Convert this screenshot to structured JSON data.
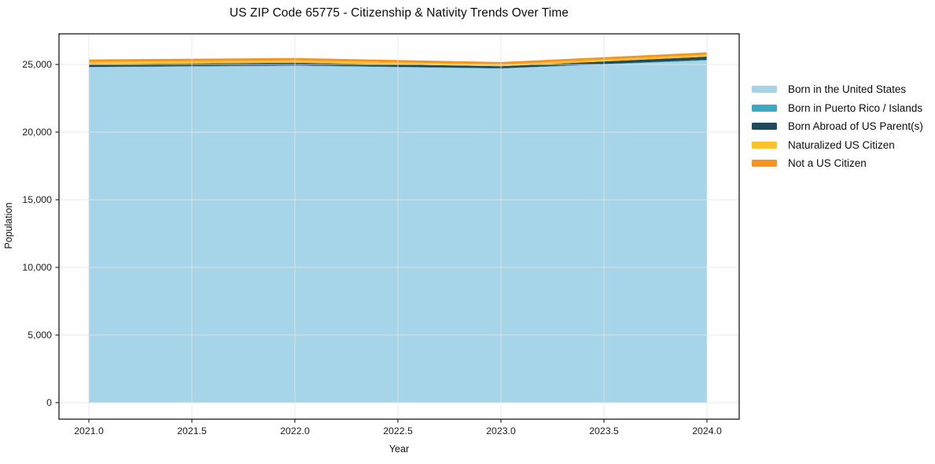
{
  "chart_data": {
    "type": "area",
    "stacked": true,
    "title": "US ZIP Code 65775 - Citizenship & Nativity Trends Over Time",
    "xlabel": "Year",
    "ylabel": "Population",
    "x": [
      2021,
      2022,
      2023,
      2024
    ],
    "series": [
      {
        "name": "Born in the United States",
        "color": "#a6d4e8",
        "values": [
          24800,
          24900,
          24700,
          25300
        ]
      },
      {
        "name": "Born in Puerto Rico / Islands",
        "color": "#3da8c2",
        "values": [
          20,
          30,
          20,
          50
        ]
      },
      {
        "name": "Born Abroad of US Parent(s)",
        "color": "#1f4a5e",
        "values": [
          200,
          200,
          150,
          230
        ]
      },
      {
        "name": "Naturalized US Citizen",
        "color": "#fcc32e",
        "values": [
          175,
          175,
          140,
          145
        ]
      },
      {
        "name": "Not a US Citizen",
        "color": "#f7941e",
        "values": [
          175,
          175,
          170,
          175
        ]
      }
    ],
    "x_ticks": {
      "values": [
        2021.0,
        2021.5,
        2022.0,
        2022.5,
        2023.0,
        2023.5,
        2024.0
      ],
      "labels": [
        "2021.0",
        "2021.5",
        "2022.0",
        "2022.5",
        "2023.0",
        "2023.5",
        "2024.0"
      ]
    },
    "y_ticks": {
      "values": [
        0,
        5000,
        10000,
        15000,
        20000,
        25000
      ],
      "labels": [
        "0",
        "5,000",
        "10,000",
        "15,000",
        "20,000",
        "25,000"
      ]
    },
    "xlim": [
      2020.855,
      2024.16
    ],
    "ylim": [
      -1220,
      27270
    ],
    "grid": true,
    "legend_position": "right",
    "colors": {
      "grid": "#e4e4e4",
      "spine": "#1a1a1a",
      "tick_label": "#1c1c1c",
      "background": "#ffffff"
    }
  }
}
